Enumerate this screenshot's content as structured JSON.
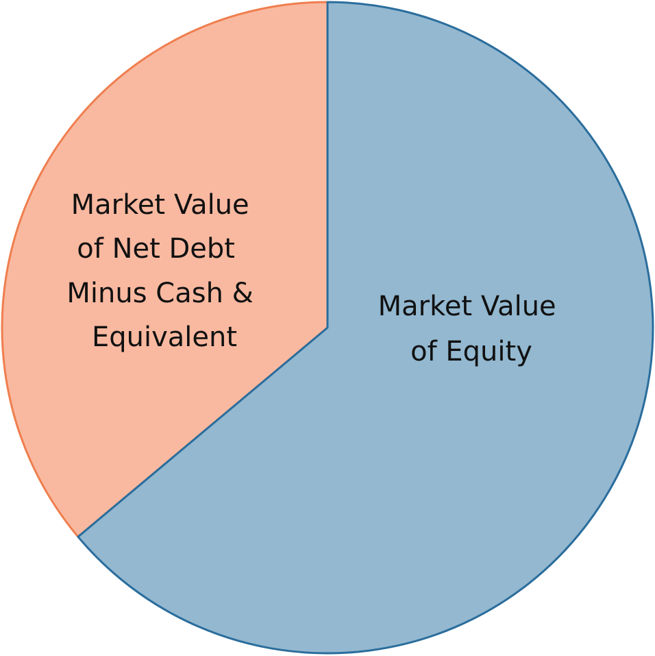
{
  "chart_data": {
    "type": "pie",
    "start_angle_deg": 0,
    "direction": "clockwise",
    "slices": [
      {
        "label_lines": [
          "Market Value",
          "of Equity"
        ],
        "value": 63.9,
        "fill": "#93B8D0",
        "stroke": "#2A6D9C"
      },
      {
        "label_lines": [
          "Market Value",
          "of Net Debt",
          "Minus Cash &",
          "Equivalent"
        ],
        "value": 36.1,
        "fill": "#F9B9A0",
        "stroke": "#EF7E4E"
      }
    ],
    "title": "",
    "legend": "none"
  }
}
